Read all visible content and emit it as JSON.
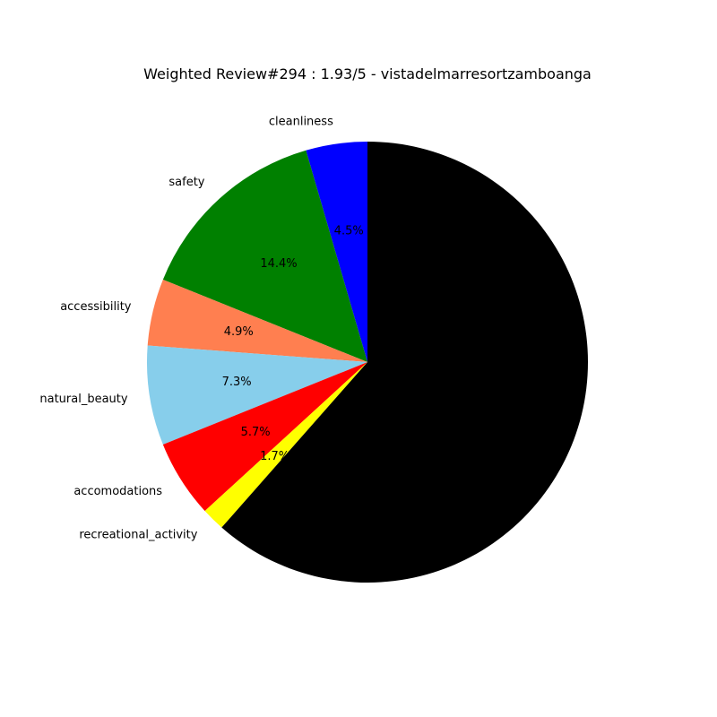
{
  "chart_data": {
    "type": "pie",
    "title": "Weighted Review#294 : 1.93/5 - vistadelmarresortzamboanga",
    "start_angle_deg": 90,
    "direction": "counterclockwise",
    "slices": [
      {
        "label": "cleanliness",
        "value": 4.5,
        "pct_label": "4.5%",
        "color": "#0000ff",
        "show_pct": true
      },
      {
        "label": "safety",
        "value": 14.4,
        "pct_label": "14.4%",
        "color": "#008000",
        "show_pct": true
      },
      {
        "label": "accessibility",
        "value": 4.9,
        "pct_label": "4.9%",
        "color": "#ff7f50",
        "show_pct": true
      },
      {
        "label": "natural_beauty",
        "value": 7.3,
        "pct_label": "7.3%",
        "color": "#87ceeb",
        "show_pct": true
      },
      {
        "label": "accomodations",
        "value": 5.7,
        "pct_label": "5.7%",
        "color": "#ff0000",
        "show_pct": true
      },
      {
        "label": "recreational_activity",
        "value": 1.7,
        "pct_label": "1.7%",
        "color": "#ffff00",
        "show_pct": true
      },
      {
        "label": "",
        "value": 61.5,
        "pct_label": "",
        "color": "#000000",
        "show_pct": false
      }
    ]
  }
}
